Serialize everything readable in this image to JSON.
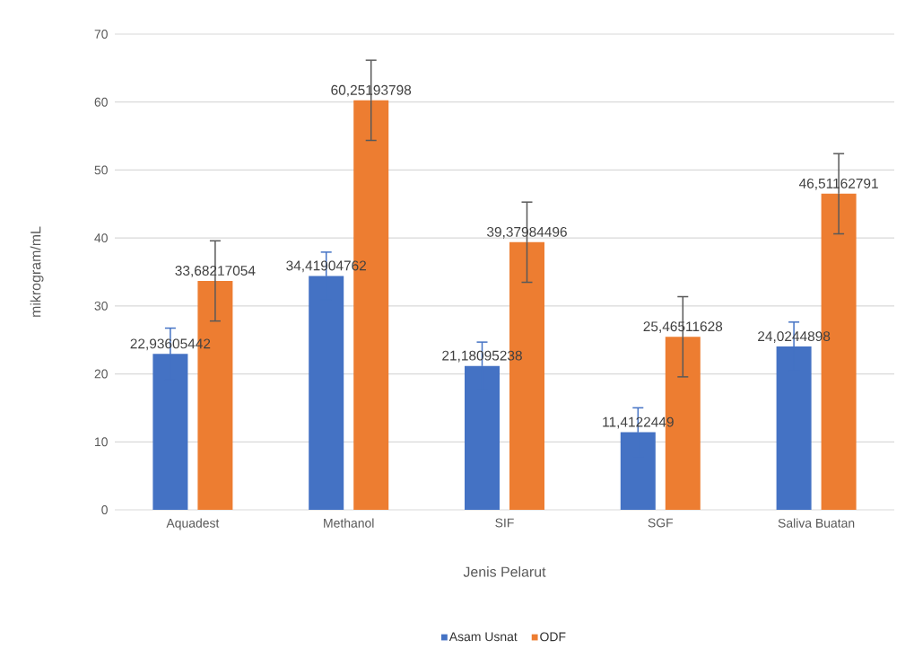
{
  "chart_data": {
    "type": "bar",
    "xlabel": "Jenis Pelarut",
    "ylabel": "mikrogram/mL",
    "categories": [
      "Aquadest",
      "Methanol",
      "SIF",
      "SGF",
      "Saliva Buatan"
    ],
    "series": [
      {
        "name": "Asam Usnat",
        "color": "#4472c4",
        "values": [
          22.93605442,
          34.41904762,
          21.18095238,
          11.4122449,
          24.0244898
        ],
        "errors": [
          3.8,
          3.5,
          3.5,
          3.6,
          3.6
        ],
        "value_labels": [
          "22,93605442",
          "34,41904762",
          "21,18095238",
          "11,4122449",
          "24,0244898"
        ]
      },
      {
        "name": "ODF",
        "color": "#ed7d31",
        "values": [
          33.68217054,
          60.25193798,
          39.37984496,
          25.46511628,
          46.51162791
        ],
        "errors": [
          5.9,
          5.9,
          5.9,
          5.9,
          5.9
        ],
        "value_labels": [
          "33,68217054",
          "60,25193798",
          "39,37984496",
          "25,46511628",
          "46,51162791"
        ]
      }
    ],
    "ylim": [
      0,
      70
    ],
    "yticks": [
      0,
      10,
      20,
      30,
      40,
      50,
      60,
      70
    ],
    "grid": "y",
    "legend": "bottom"
  }
}
